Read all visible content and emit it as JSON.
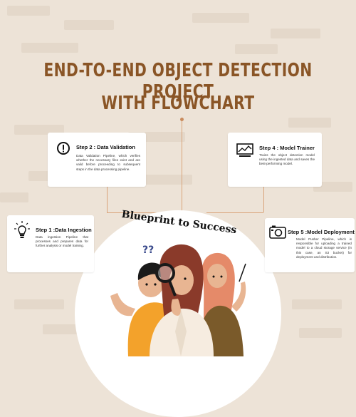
{
  "title": {
    "line1": "END-TO-END OBJECT DETECTION PROJECT",
    "line2": "WITH FLOWCHART"
  },
  "banner": "Blueprint to Success",
  "question_marks": "??",
  "steps": [
    {
      "heading": "Step 2 : Data Validation",
      "text": "Data Validation Pipeline, which verifies whether the necessary files exist and are valid before proceeding to subsequent steps in the data processing pipeline.",
      "icon": "alert-circle-icon"
    },
    {
      "heading": "Step 4 : Model Trainer",
      "text": "Trains the object detection model using the ingested data and saves the best-performing model.",
      "icon": "chart-monitor-icon"
    },
    {
      "heading": "Step 1 :Data Ingestion",
      "text": "Data ingestion Pipeline that processes and prepares data for further analysis or model training.",
      "icon": "lightbulb-icon"
    },
    {
      "heading": "Step 5 :Model Deployment",
      "text": "Model Pusher Pipeline, which is responsible for uploading a trained model to a cloud storage service (in this case, an S3 bucket) for deployment and distribution.",
      "icon": "camera-icon"
    }
  ],
  "colors": {
    "background": "#ede3d7",
    "title": "#8a5526",
    "connector": "#d9a47a"
  }
}
